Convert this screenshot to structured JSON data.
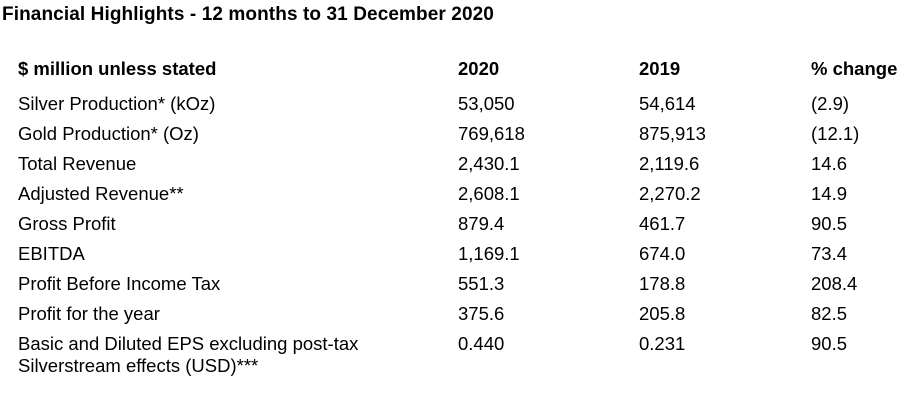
{
  "title": "Financial Highlights - 12 months to 31 December 2020",
  "table": {
    "headers": {
      "label": "$ million unless stated",
      "y2020": "2020",
      "y2019": "2019",
      "change": "% change"
    },
    "rows": [
      {
        "label": "Silver Production* (kOz)",
        "y2020": "53,050",
        "y2019": "54,614",
        "change": "(2.9)"
      },
      {
        "label": "Gold Production* (Oz)",
        "y2020": "769,618",
        "y2019": "875,913",
        "change": "(12.1)"
      },
      {
        "label": "Total Revenue",
        "y2020": "2,430.1",
        "y2019": "2,119.6",
        "change": "14.6"
      },
      {
        "label": "Adjusted Revenue**",
        "y2020": "2,608.1",
        "y2019": "2,270.2",
        "change": "14.9"
      },
      {
        "label": "Gross Profit",
        "y2020": "879.4",
        "y2019": "461.7",
        "change": "90.5"
      },
      {
        "label": "EBITDA",
        "y2020": "1,169.1",
        "y2019": "674.0",
        "change": "73.4"
      },
      {
        "label": "Profit Before Income Tax",
        "y2020": "551.3",
        "y2019": "178.8",
        "change": "208.4"
      },
      {
        "label": "Profit for the year",
        "y2020": "375.6",
        "y2019": "205.8",
        "change": "82.5"
      },
      {
        "label": "Basic and Diluted EPS excluding post-tax",
        "label_line2": "Silverstream effects (USD)***",
        "y2020": "0.440",
        "y2019": "0.231",
        "change": "90.5"
      }
    ]
  }
}
